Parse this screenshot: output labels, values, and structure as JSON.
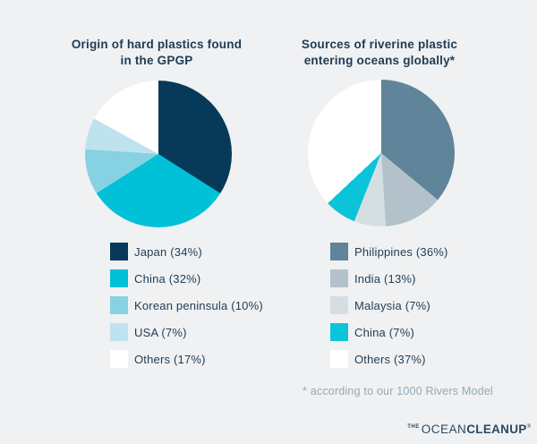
{
  "page": {
    "background_color": "#f0f1f2",
    "text_color": "#1e3c55",
    "footnote": "* according to our 1000 Rivers Model",
    "footnote_color": "#93a9b5",
    "logo": {
      "the": "THE",
      "ocean": "OCEAN",
      "cleanup": "CLEANUP",
      "mark": "®",
      "color": "#2a4a64"
    }
  },
  "chart_data": [
    {
      "type": "pie",
      "title": "Origin of hard plastics found in the GPGP",
      "title_lines": [
        "Origin of hard plastics found",
        "in the GPGP"
      ],
      "start_angle_deg": 0,
      "direction": "clockwise",
      "legend_position": "below-left",
      "series": [
        {
          "label": "Japan",
          "value_pct": 34,
          "display": "Japan (34%)",
          "color": "#073a58"
        },
        {
          "label": "China",
          "value_pct": 32,
          "display": "China (32%)",
          "color": "#00c1d8"
        },
        {
          "label": "Korean peninsula",
          "value_pct": 10,
          "display": "Korean peninsula (10%)",
          "color": "#87d2e2"
        },
        {
          "label": "USA",
          "value_pct": 7,
          "display": "USA (7%)",
          "color": "#bfe3ee"
        },
        {
          "label": "Others",
          "value_pct": 17,
          "display": "Others (17%)",
          "color": "#ffffff"
        }
      ]
    },
    {
      "type": "pie",
      "title": "Sources of riverine plastic entering oceans globally*",
      "title_lines": [
        "Sources of riverine plastic",
        "entering oceans globally*"
      ],
      "start_angle_deg": 0,
      "direction": "clockwise",
      "legend_position": "below-left",
      "series": [
        {
          "label": "Philippines",
          "value_pct": 36,
          "display": "Philippines (36%)",
          "color": "#60849a"
        },
        {
          "label": "India",
          "value_pct": 13,
          "display": "India (13%)",
          "color": "#b3c2ca"
        },
        {
          "label": "Malaysia",
          "value_pct": 7,
          "display": "Malaysia (7%)",
          "color": "#d5dfe3"
        },
        {
          "label": "China",
          "value_pct": 7,
          "display": "China (7%)",
          "color": "#0cc4da"
        },
        {
          "label": "Others",
          "value_pct": 37,
          "display": "Others (37%)",
          "color": "#ffffff"
        }
      ]
    }
  ]
}
